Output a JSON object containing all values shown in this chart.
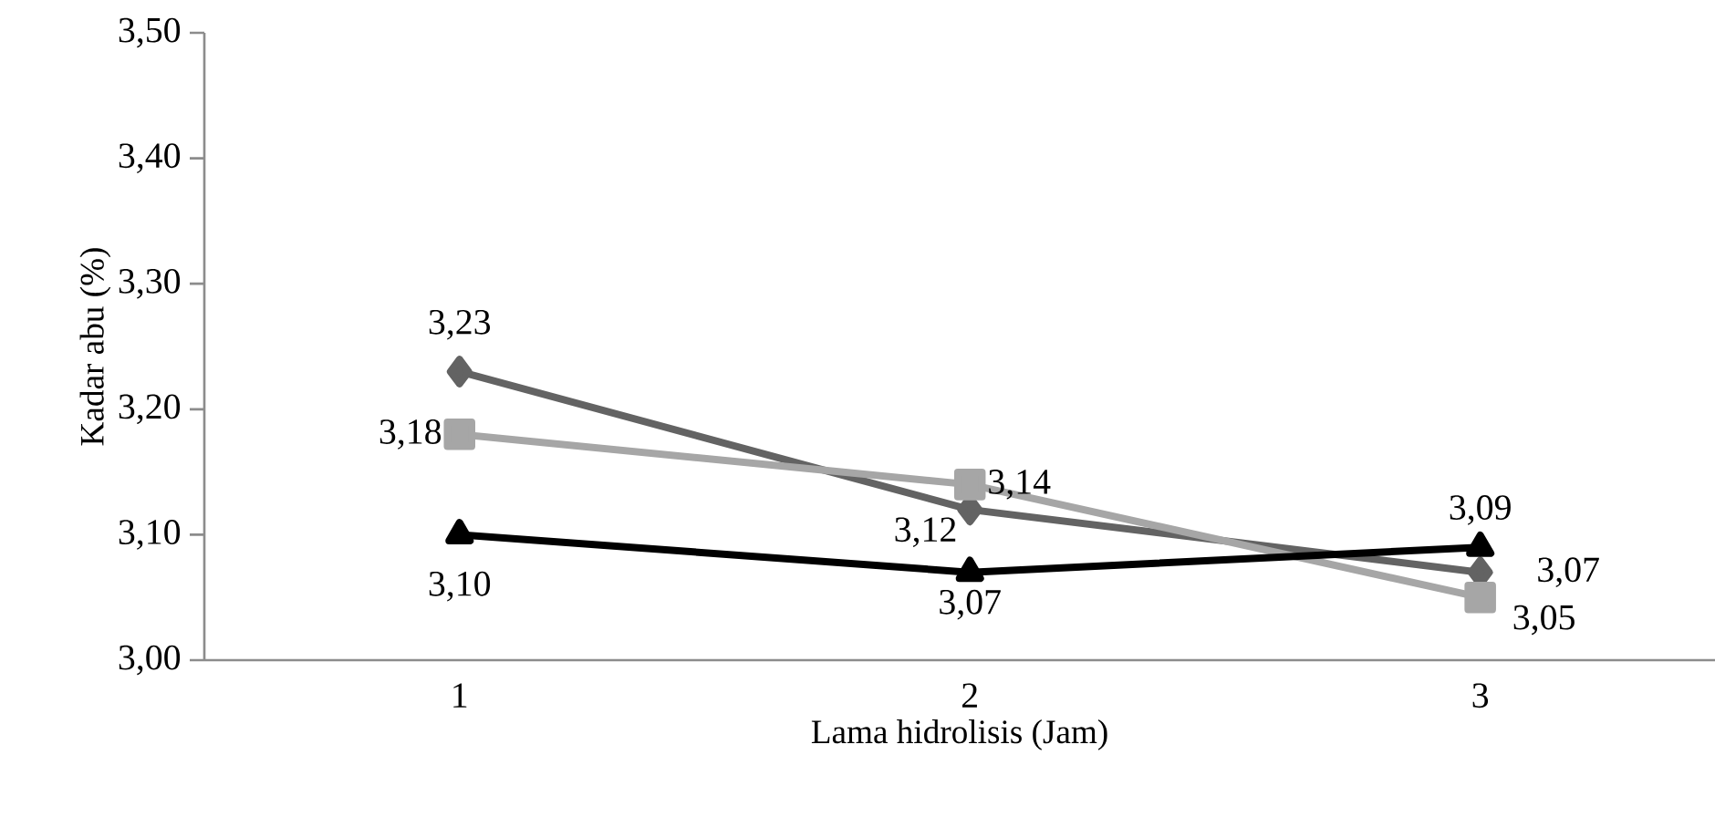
{
  "chart_data": {
    "type": "line",
    "xlabel": "Lama hidrolisis (Jam)",
    "ylabel": "Kadar abu (%)",
    "categories": [
      "1",
      "2",
      "3"
    ],
    "series": [
      {
        "color": "#636363",
        "marker": "diamond",
        "values": [
          3.23,
          3.12,
          3.07
        ],
        "value_labels": [
          "3,23",
          "3,12",
          "3,07"
        ]
      },
      {
        "color": "#a6a6a6",
        "marker": "square",
        "values": [
          3.18,
          3.14,
          3.05
        ],
        "value_labels": [
          "3,18",
          "3,14",
          "3,05"
        ]
      },
      {
        "color": "#000000",
        "marker": "triangle",
        "values": [
          3.1,
          3.07,
          3.09
        ],
        "value_labels": [
          "3,10",
          "3,07",
          "3,09"
        ]
      }
    ],
    "ylim": [
      3.0,
      3.5
    ],
    "yticks": [
      {
        "value": 3.0,
        "label": "3,00"
      },
      {
        "value": 3.1,
        "label": "3,10"
      },
      {
        "value": 3.2,
        "label": "3,20"
      },
      {
        "value": 3.3,
        "label": "3,30"
      },
      {
        "value": 3.4,
        "label": "3,40"
      },
      {
        "value": 3.5,
        "label": "3,50"
      }
    ],
    "line_style": "solid"
  }
}
